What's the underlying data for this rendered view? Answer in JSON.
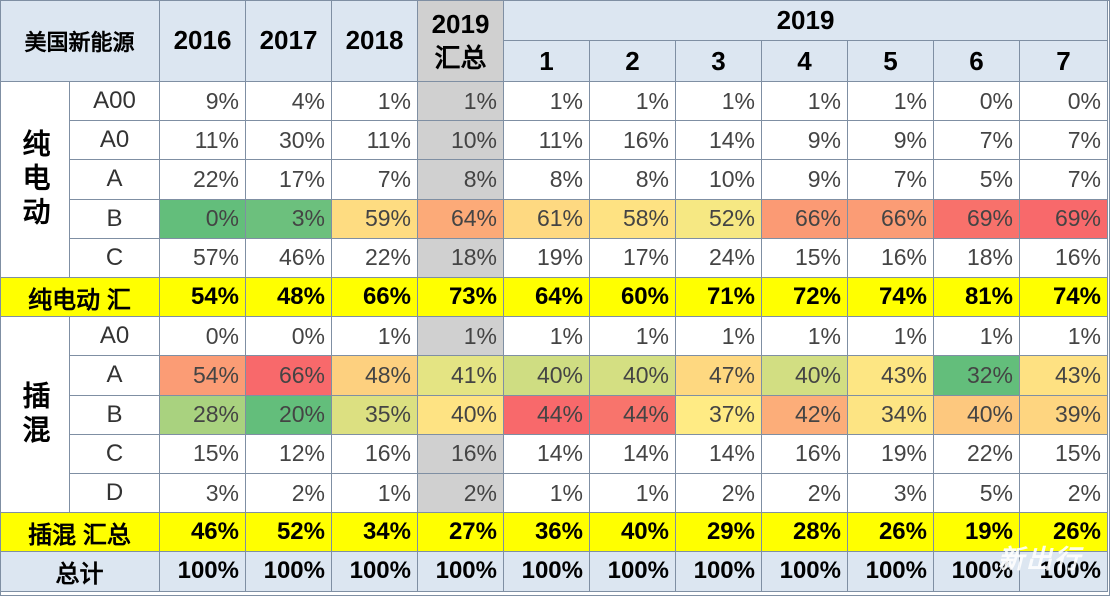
{
  "chart_data": {
    "type": "table",
    "title": "美国新能源",
    "columns": [
      "2016",
      "2017",
      "2018",
      "2019 汇总",
      "1",
      "2",
      "3",
      "4",
      "5",
      "6",
      "7"
    ],
    "header": {
      "corner": "美国新能源",
      "years": [
        "2016",
        "2017",
        "2018"
      ],
      "summary": [
        "2019",
        "汇总"
      ],
      "group_year": "2019",
      "months": [
        "1",
        "2",
        "3",
        "4",
        "5",
        "6",
        "7"
      ]
    },
    "sections": [
      {
        "group": "纯电动",
        "rows": [
          {
            "label": "A00",
            "values": [
              "9%",
              "4%",
              "1%",
              "1%",
              "1%",
              "1%",
              "1%",
              "1%",
              "1%",
              "0%",
              "0%"
            ]
          },
          {
            "label": "A0",
            "values": [
              "11%",
              "30%",
              "11%",
              "10%",
              "11%",
              "16%",
              "14%",
              "9%",
              "9%",
              "7%",
              "7%"
            ]
          },
          {
            "label": "A",
            "values": [
              "22%",
              "17%",
              "7%",
              "8%",
              "8%",
              "8%",
              "10%",
              "9%",
              "7%",
              "5%",
              "7%"
            ]
          },
          {
            "label": "B",
            "values": [
              "0%",
              "3%",
              "59%",
              "64%",
              "61%",
              "58%",
              "52%",
              "66%",
              "66%",
              "69%",
              "69%"
            ],
            "colors": [
              "#63be7b",
              "#6cc07d",
              "#fedc81",
              "#fcaa78",
              "#fed981",
              "#fee282",
              "#f6e883",
              "#fb9a74",
              "#fb9c75",
              "#f8716b",
              "#f8696b"
            ]
          },
          {
            "label": "C",
            "values": [
              "57%",
              "46%",
              "22%",
              "18%",
              "19%",
              "17%",
              "24%",
              "15%",
              "16%",
              "18%",
              "16%"
            ]
          }
        ],
        "summary": {
          "label": "纯电动 汇",
          "values": [
            "54%",
            "48%",
            "66%",
            "73%",
            "64%",
            "60%",
            "71%",
            "72%",
            "74%",
            "81%",
            "74%"
          ]
        }
      },
      {
        "group": "插混",
        "rows": [
          {
            "label": "A0",
            "values": [
              "0%",
              "0%",
              "1%",
              "1%",
              "1%",
              "1%",
              "1%",
              "1%",
              "1%",
              "1%",
              "1%"
            ]
          },
          {
            "label": "A",
            "values": [
              "54%",
              "66%",
              "48%",
              "41%",
              "40%",
              "40%",
              "47%",
              "40%",
              "43%",
              "32%",
              "43%"
            ],
            "colors": [
              "#fb9c75",
              "#f8696b",
              "#fdd07f",
              "#e4e483",
              "#cfdd82",
              "#d4df82",
              "#fed880",
              "#d2de82",
              "#fde683",
              "#63be7b",
              "#fee182"
            ]
          },
          {
            "label": "B",
            "values": [
              "28%",
              "20%",
              "35%",
              "40%",
              "44%",
              "44%",
              "37%",
              "42%",
              "34%",
              "40%",
              "39%"
            ],
            "colors": [
              "#a9d27f",
              "#63be7b",
              "#dce081",
              "#fee383",
              "#f8696b",
              "#f8746c",
              "#ffeb84",
              "#fcad79",
              "#fde483",
              "#fdc87e",
              "#fed580"
            ]
          },
          {
            "label": "C",
            "values": [
              "15%",
              "12%",
              "16%",
              "16%",
              "14%",
              "14%",
              "14%",
              "16%",
              "19%",
              "22%",
              "15%"
            ]
          },
          {
            "label": "D",
            "values": [
              "3%",
              "2%",
              "1%",
              "2%",
              "1%",
              "1%",
              "2%",
              "2%",
              "3%",
              "5%",
              "2%"
            ]
          }
        ],
        "summary": {
          "label": "插混 汇总",
          "values": [
            "46%",
            "52%",
            "34%",
            "27%",
            "36%",
            "40%",
            "29%",
            "28%",
            "26%",
            "19%",
            "26%"
          ]
        }
      }
    ],
    "total": {
      "label": "总计",
      "values": [
        "100%",
        "100%",
        "100%",
        "100%",
        "100%",
        "100%",
        "100%",
        "100%",
        "100%",
        "100%",
        "100%"
      ]
    },
    "highlight_column": 3,
    "summary_row_color": "#ffff00",
    "header_color": "#dce6f1",
    "highlight_column_color": "#d0d0d0"
  },
  "watermark": "新出行"
}
